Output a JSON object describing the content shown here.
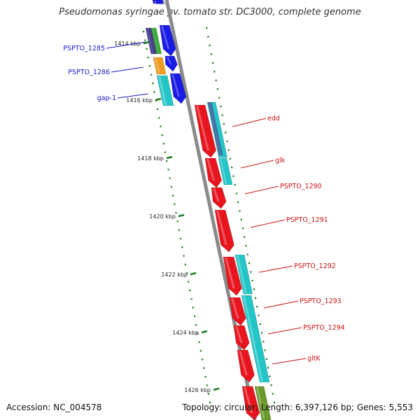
{
  "title": "Pseudomonas syringae pv. tomato str. DC3000, complete genome",
  "footer": {
    "accession": "Accession: NC_004578",
    "stats": "Topology: circular; Length: 6,397,126 bp; Genes: 5,553"
  },
  "ticks": [
    "1414 kbp",
    "1416 kbp",
    "1418 kbp",
    "1420 kbp",
    "1422 kbp",
    "1424 kbp",
    "1426 kbp"
  ],
  "colors": {
    "cog_red": "#e8141e",
    "cog_cyan": "#22c6c8",
    "cog_blue": "#1a1ae6",
    "cog_orange": "#f39a1e",
    "cog_green": "#3aaa3a",
    "cog_purple": "#4a3e8e",
    "cog_olive": "#6a9a2a",
    "left_label": "#1a1acc",
    "right_label": "#cc1111",
    "backbone": "#8a8a8a",
    "tick": "#1a7a1a"
  },
  "genes_left": [
    "PSPTO_1285",
    "PSPTO_1286",
    "gap-1"
  ],
  "genes_right": [
    "edd",
    "glk",
    "PSPTO_1290",
    "PSPTO_1291",
    "PSPTO_1292",
    "PSPTO_1293",
    "PSPTO_1294",
    "gltK"
  ]
}
